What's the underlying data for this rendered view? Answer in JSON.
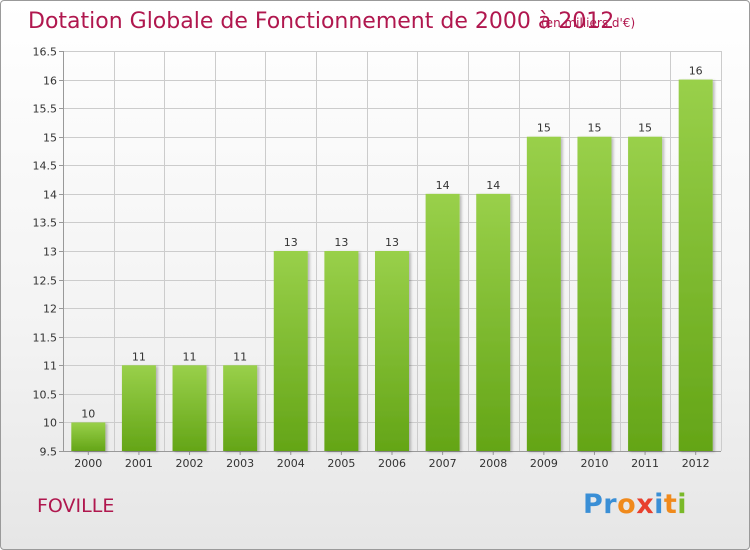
{
  "title": "Dotation Globale de Fonctionnement de 2000 à 2012",
  "unit": "(en milliers d'€)",
  "commune": "FOVILLE",
  "logo": {
    "letters": [
      {
        "ch": "P",
        "color": "#3a8fd6"
      },
      {
        "ch": "r",
        "color": "#3a8fd6"
      },
      {
        "ch": "o",
        "color": "#f08a1c"
      },
      {
        "ch": "x",
        "color": "#e8402e"
      },
      {
        "ch": "i",
        "color": "#3a8fd6"
      },
      {
        "ch": "t",
        "color": "#f08a1c"
      },
      {
        "ch": "i",
        "color": "#7ab929"
      }
    ]
  },
  "colors": {
    "title": "#b0174e",
    "bar_top": "#99d04a",
    "bar_bottom": "#64a517",
    "grid": "#cccccc",
    "axis": "#999999"
  },
  "chart_data": {
    "type": "bar",
    "categories": [
      "2000",
      "2001",
      "2002",
      "2003",
      "2004",
      "2005",
      "2006",
      "2007",
      "2008",
      "2009",
      "2010",
      "2011",
      "2012"
    ],
    "values": [
      10,
      11,
      11,
      11,
      13,
      13,
      13,
      14,
      14,
      15,
      15,
      15,
      16
    ],
    "ylim": [
      9.5,
      16.5
    ],
    "yticks": [
      "9.5",
      "10",
      "10.5",
      "11",
      "11.5",
      "12",
      "12.5",
      "13",
      "13.5",
      "14",
      "14.5",
      "15",
      "15.5",
      "16",
      "16.5"
    ],
    "grid": true,
    "legend": "none"
  }
}
